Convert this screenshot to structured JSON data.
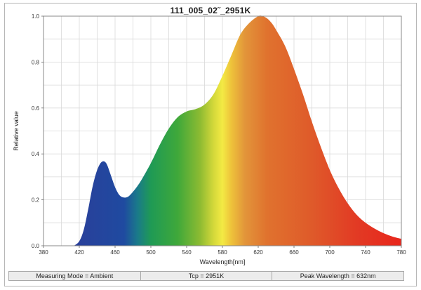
{
  "chart_data": {
    "type": "area",
    "title": "111_005_02˝_2951K",
    "xlabel": "Wavelength[nm]",
    "ylabel": "Relative value",
    "xlim": [
      380,
      780
    ],
    "ylim": [
      0,
      1.0
    ],
    "x_ticks": [
      "380",
      "420",
      "460",
      "500",
      "540",
      "580",
      "620",
      "660",
      "700",
      "740",
      "780"
    ],
    "y_ticks": [
      "0.0",
      "0.2",
      "0.4",
      "0.6",
      "0.8",
      "1.0"
    ],
    "grid": true,
    "fill": "spectral-rainbow",
    "x": [
      414,
      420,
      425,
      430,
      435,
      440,
      445,
      450,
      455,
      460,
      465,
      470,
      475,
      480,
      485,
      490,
      500,
      510,
      520,
      530,
      540,
      550,
      560,
      570,
      580,
      590,
      600,
      610,
      620,
      625,
      630,
      635,
      640,
      650,
      660,
      670,
      680,
      690,
      700,
      710,
      720,
      730,
      740,
      750,
      760,
      770,
      780
    ],
    "y": [
      0.0,
      0.02,
      0.07,
      0.16,
      0.26,
      0.33,
      0.365,
      0.36,
      0.31,
      0.255,
      0.22,
      0.21,
      0.215,
      0.235,
      0.26,
      0.29,
      0.36,
      0.44,
      0.51,
      0.56,
      0.585,
      0.595,
      0.615,
      0.66,
      0.74,
      0.83,
      0.92,
      0.97,
      1.0,
      1.0,
      0.99,
      0.97,
      0.94,
      0.87,
      0.77,
      0.66,
      0.54,
      0.43,
      0.33,
      0.25,
      0.185,
      0.135,
      0.1,
      0.075,
      0.055,
      0.04,
      0.03
    ]
  },
  "status_bar": {
    "measuring_mode": "Measuring Mode = Ambient",
    "tcp": "Tcp = 2951K",
    "peak_wavelength": "Peak Wavelength = 632nm"
  }
}
